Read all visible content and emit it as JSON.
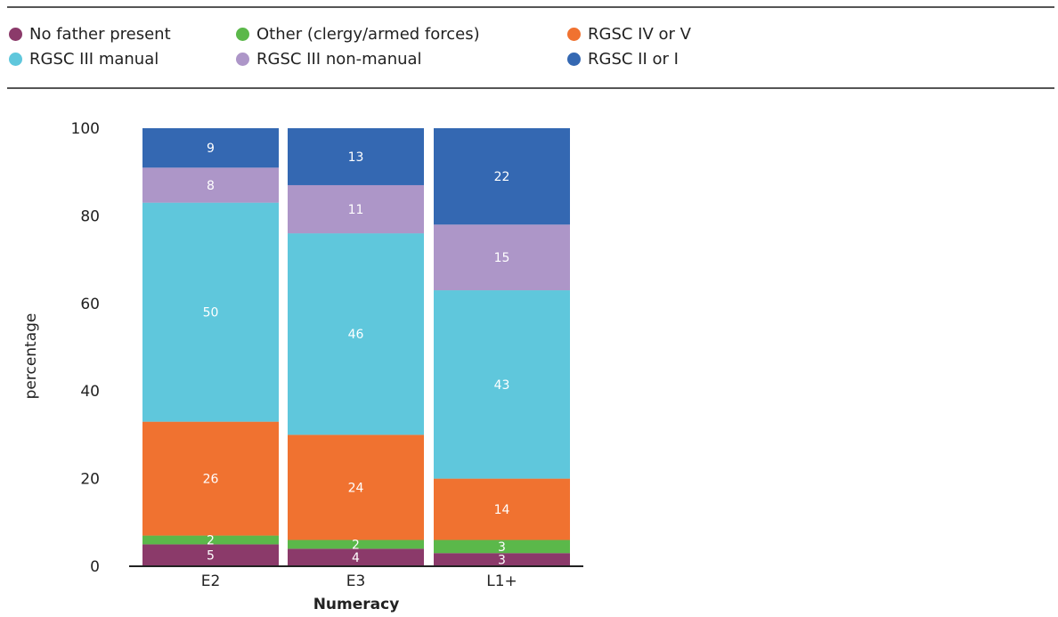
{
  "chart_data": {
    "type": "bar",
    "stacked": true,
    "categories": [
      "E2",
      "E3",
      "L1+"
    ],
    "series": [
      {
        "name": "No father present",
        "color": "#8b3a6a",
        "values": [
          5,
          4,
          3
        ]
      },
      {
        "name": "Other (clergy/armed forces)",
        "color": "#5bb84a",
        "values": [
          2,
          2,
          3
        ]
      },
      {
        "name": "RGSC IV or V",
        "color": "#f07230",
        "values": [
          26,
          24,
          14
        ]
      },
      {
        "name": "RGSC III manual",
        "color": "#5fc7dc",
        "values": [
          50,
          46,
          43
        ]
      },
      {
        "name": "RGSC III non-manual",
        "color": "#ad96c8",
        "values": [
          8,
          11,
          15
        ]
      },
      {
        "name": "RGSC II or I",
        "color": "#3468b2",
        "values": [
          9,
          13,
          22
        ]
      }
    ],
    "yticks": [
      "0",
      "20",
      "40",
      "60",
      "80",
      "100"
    ],
    "ylim": [
      0,
      100
    ],
    "xlabel": "Numeracy",
    "ylabel": "percentage",
    "title": "",
    "legend_position": "top",
    "grid": false
  }
}
